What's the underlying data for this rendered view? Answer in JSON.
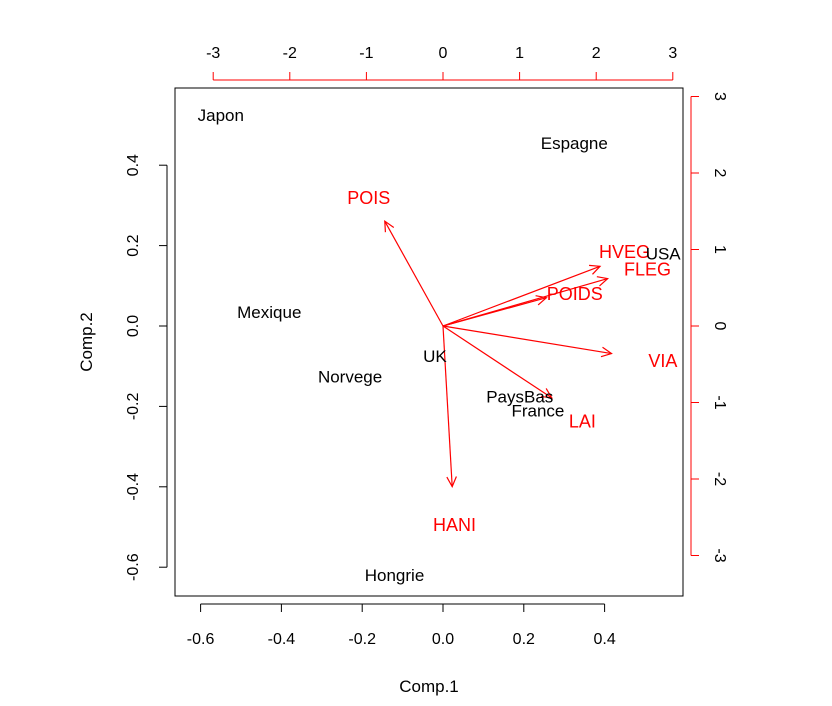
{
  "colors": {
    "observations": "#000000",
    "variables": "#ff0000",
    "frame": "#000000"
  },
  "chart_data": {
    "type": "scatter",
    "subtype": "biplot",
    "title": "",
    "xlabel": "Comp.1",
    "ylabel": "Comp.2",
    "xlim": [
      -0.67,
      0.6
    ],
    "ylim": [
      -0.67,
      0.58
    ],
    "x_ticks": [
      -0.6,
      -0.4,
      -0.2,
      0.0,
      0.2,
      0.4
    ],
    "x_tick_labels": [
      "-0.6",
      "-0.4",
      "-0.2",
      "0.0",
      "0.2",
      "0.4"
    ],
    "y_ticks": [
      -0.6,
      -0.4,
      -0.2,
      0.0,
      0.2,
      0.4
    ],
    "y_tick_labels": [
      "-0.6",
      "-0.4",
      "-0.2",
      "0.0",
      "0.2",
      "0.4"
    ],
    "secondary_axes": {
      "top_ticks": [
        -3,
        -2,
        -1,
        0,
        1,
        2,
        3
      ],
      "top_tick_labels": [
        "-3",
        "-2",
        "-1",
        "0",
        "1",
        "2",
        "3"
      ],
      "right_ticks": [
        -3,
        -2,
        -1,
        0,
        1,
        2,
        3
      ],
      "right_tick_labels": [
        "-3",
        "-2",
        "-1",
        "0",
        "1",
        "2",
        "3"
      ],
      "scale": 0.2
    },
    "observations": [
      {
        "label": "Japon",
        "x": -0.55,
        "y": 0.525
      },
      {
        "label": "Espagne",
        "x": 0.325,
        "y": 0.455
      },
      {
        "label": "USA",
        "x": 0.545,
        "y": 0.18
      },
      {
        "label": "Mexique",
        "x": -0.43,
        "y": 0.035
      },
      {
        "label": "UK",
        "x": -0.02,
        "y": -0.075
      },
      {
        "label": "Norvege",
        "x": -0.23,
        "y": -0.125
      },
      {
        "label": "PaysBas",
        "x": 0.19,
        "y": -0.175
      },
      {
        "label": "France",
        "x": 0.235,
        "y": -0.21
      },
      {
        "label": "Hongrie",
        "x": -0.12,
        "y": -0.62
      }
    ],
    "variables": [
      {
        "label": "POIS",
        "x": -0.76,
        "y": 1.37,
        "label_x": -0.97,
        "label_y": 1.67
      },
      {
        "label": "HVEG",
        "x": 2.05,
        "y": 0.78,
        "label_x": 2.37,
        "label_y": 0.97
      },
      {
        "label": "FLEG",
        "x": 2.15,
        "y": 0.62,
        "label_x": 2.67,
        "label_y": 0.74
      },
      {
        "label": "POIDS",
        "x": 1.35,
        "y": 0.37,
        "label_x": 1.72,
        "label_y": 0.42
      },
      {
        "label": "VIA",
        "x": 2.2,
        "y": -0.36,
        "label_x": 2.87,
        "label_y": -0.46
      },
      {
        "label": "LAI",
        "x": 1.42,
        "y": -0.94,
        "label_x": 1.82,
        "label_y": -1.25
      },
      {
        "label": "HANI",
        "x": 0.12,
        "y": -2.1,
        "label_x": 0.15,
        "label_y": -2.6
      }
    ]
  }
}
